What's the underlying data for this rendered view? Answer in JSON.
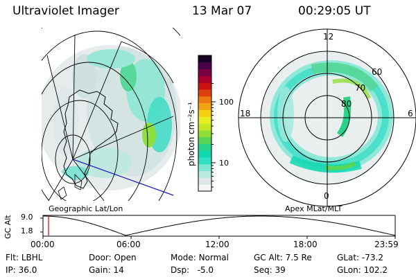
{
  "header": {
    "title": "Ultraviolet Imager",
    "date": "13 Mar 07",
    "time": "00:29:05 UT"
  },
  "geo_panel": {
    "caption": "Geographic Lat/Lon"
  },
  "polar_panel": {
    "caption": "Apex MLat/MLT",
    "mlt_labels": {
      "top": "12",
      "left": "18",
      "right": "6",
      "bottom": "0"
    },
    "lat_labels": [
      "60",
      "70",
      "80"
    ]
  },
  "colorbar": {
    "unit_label": "photon cm⁻²s⁻¹",
    "ticks": [
      {
        "label": "100",
        "value": 100
      },
      {
        "label": "10",
        "value": 10
      }
    ],
    "colors": [
      "#f4f4f4",
      "#dde6e6",
      "#b8e8e0",
      "#7fe6d4",
      "#2fe0c4",
      "#12d7b0",
      "#28d48a",
      "#58d658",
      "#8ee038",
      "#c2e824",
      "#e8ee20",
      "#f5d012",
      "#f2a410",
      "#ec7a0e",
      "#e0400c",
      "#cc1212",
      "#a8002a",
      "#7a0040",
      "#4a0048",
      "#1a0028"
    ]
  },
  "altitude_strip": {
    "axis_label": "GC Alt",
    "y_ticks": [
      "9.0",
      "1.8"
    ],
    "x_ticks": [
      "00:00",
      "06:00",
      "12:00",
      "18:00",
      "23:59"
    ]
  },
  "footer": {
    "row1": [
      {
        "label": "Flt:",
        "value": "LBHL"
      },
      {
        "label": "Door:",
        "value": "Open"
      },
      {
        "label": "Mode:",
        "value": "Normal"
      },
      {
        "label": "GC Alt:",
        "value": "7.5 Re"
      },
      {
        "label": "GLat:",
        "value": "-73.2"
      }
    ],
    "row2": [
      {
        "label": "IP:",
        "value": "36.0"
      },
      {
        "label": "Gain:",
        "value": "14"
      },
      {
        "label": "Dsp:",
        "value": "-5.0"
      },
      {
        "label": "Seq:",
        "value": "39"
      },
      {
        "label": "GLon:",
        "value": "102.2"
      }
    ]
  }
}
